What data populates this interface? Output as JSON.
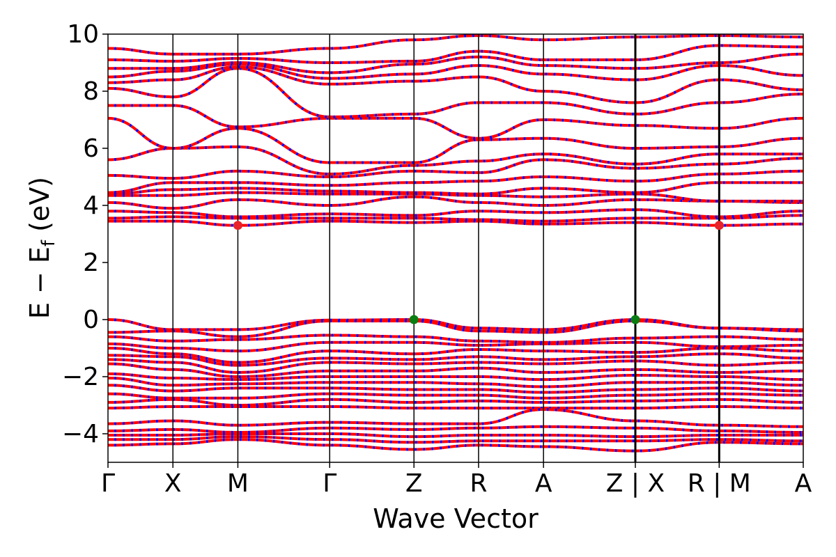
{
  "chart_data": {
    "type": "line",
    "title": "",
    "xlabel": "Wave Vector",
    "ylabel": {
      "main": "E − E",
      "sub": "f",
      "unit": " (eV)"
    },
    "ylim": [
      -5,
      10
    ],
    "yticks": [
      10,
      8,
      6,
      4,
      2,
      0,
      -2,
      -4
    ],
    "ytick_labels": [
      "10",
      "8",
      "6",
      "4",
      "2",
      "0",
      "−2",
      "−4"
    ],
    "grid": false,
    "x": [
      0.0,
      0.0934,
      0.1868,
      0.3189,
      0.4401,
      0.533,
      0.6264,
      0.7585,
      0.8791,
      1.0
    ],
    "xtick_labels": [
      "Γ",
      "X",
      "M",
      "Γ",
      "Z",
      "R",
      "A",
      "Z | X",
      "R | M",
      "A"
    ],
    "path_breaks": [
      0.7585,
      0.8791
    ],
    "line_style": {
      "color_a": "#ff0000",
      "color_b": "#0000ff",
      "note": "two overlapping dashed band sets (red and blue)"
    },
    "special_points": [
      {
        "name": "CBM",
        "x": 0.1868,
        "y": 3.3,
        "color": "#e8232a"
      },
      {
        "name": "CBM",
        "x": 0.8791,
        "y": 3.3,
        "color": "#e8232a"
      },
      {
        "name": "VBM",
        "x": 0.4401,
        "y": 0.0,
        "color": "#0a7d12"
      },
      {
        "name": "VBM",
        "x": 0.7585,
        "y": 0.0,
        "color": "#0a7d12"
      }
    ],
    "series": [
      {
        "values": [
          0.0,
          -0.35,
          -0.35,
          -0.02,
          0.0,
          -0.3,
          -0.35,
          0.0,
          -0.3,
          -0.35
        ]
      },
      {
        "values": [
          -0.45,
          -0.4,
          -0.6,
          -0.05,
          -0.05,
          -0.4,
          -0.45,
          -0.05,
          -0.3,
          -0.4
        ]
      },
      {
        "values": [
          -0.6,
          -0.75,
          -0.7,
          -0.55,
          -0.6,
          -0.75,
          -0.8,
          -0.65,
          -0.6,
          -0.7
        ]
      },
      {
        "values": [
          -0.85,
          -1.0,
          -1.1,
          -0.8,
          -0.8,
          -0.9,
          -0.85,
          -0.8,
          -0.95,
          -0.9
        ]
      },
      {
        "values": [
          -1.0,
          -1.2,
          -1.5,
          -1.1,
          -1.2,
          -1.05,
          -1.1,
          -1.15,
          -1.0,
          -1.1
        ]
      },
      {
        "values": [
          -1.25,
          -1.3,
          -1.6,
          -1.35,
          -1.4,
          -1.3,
          -1.4,
          -1.3,
          -1.2,
          -1.35
        ]
      },
      {
        "values": [
          -1.4,
          -1.5,
          -1.85,
          -1.5,
          -1.55,
          -1.5,
          -1.55,
          -1.45,
          -1.6,
          -1.5
        ]
      },
      {
        "values": [
          -1.55,
          -1.75,
          -2.0,
          -1.8,
          -1.8,
          -1.7,
          -1.85,
          -1.75,
          -1.85,
          -1.8
        ]
      },
      {
        "values": [
          -1.9,
          -2.05,
          -2.1,
          -2.0,
          -2.0,
          -2.0,
          -2.1,
          -1.95,
          -2.0,
          -2.1
        ]
      },
      {
        "values": [
          -2.05,
          -2.3,
          -2.25,
          -2.2,
          -2.2,
          -2.25,
          -2.35,
          -2.2,
          -2.2,
          -2.3
        ]
      },
      {
        "values": [
          -2.3,
          -2.5,
          -2.4,
          -2.4,
          -2.45,
          -2.45,
          -2.55,
          -2.45,
          -2.4,
          -2.5
        ]
      },
      {
        "values": [
          -2.6,
          -2.75,
          -2.75,
          -2.6,
          -2.65,
          -2.65,
          -2.75,
          -2.65,
          -2.6,
          -2.65
        ]
      },
      {
        "values": [
          -2.9,
          -2.8,
          -3.0,
          -2.8,
          -2.9,
          -2.85,
          -2.9,
          -2.85,
          -2.8,
          -2.9
        ]
      },
      {
        "values": [
          -3.1,
          -3.05,
          -3.05,
          -3.05,
          -3.1,
          -3.1,
          -3.1,
          -3.1,
          -3.05,
          -3.1
        ]
      },
      {
        "values": [
          -3.65,
          -3.55,
          -3.7,
          -3.6,
          -3.65,
          -3.65,
          -3.15,
          -3.55,
          -3.7,
          -3.75
        ]
      },
      {
        "values": [
          -3.9,
          -3.85,
          -3.95,
          -3.8,
          -3.85,
          -3.8,
          -3.75,
          -3.8,
          -3.9,
          -3.95
        ]
      },
      {
        "values": [
          -4.05,
          -4.05,
          -4.0,
          -4.0,
          -4.1,
          -4.05,
          -4.05,
          -4.1,
          -4.05,
          -4.05
        ]
      },
      {
        "values": [
          -4.2,
          -4.2,
          -4.1,
          -4.2,
          -4.3,
          -4.25,
          -4.25,
          -4.25,
          -4.2,
          -4.25
        ]
      },
      {
        "values": [
          -4.4,
          -4.35,
          -4.2,
          -4.4,
          -4.55,
          -4.4,
          -4.45,
          -4.6,
          -4.3,
          -4.35
        ]
      },
      {
        "values": [
          3.45,
          3.45,
          3.3,
          3.45,
          3.4,
          3.45,
          3.35,
          3.4,
          3.3,
          3.35
        ]
      },
      {
        "values": [
          3.55,
          3.6,
          3.55,
          3.55,
          3.55,
          3.5,
          3.45,
          3.55,
          3.55,
          3.65
        ]
      },
      {
        "values": [
          3.8,
          3.75,
          3.6,
          3.7,
          3.65,
          3.8,
          3.75,
          3.85,
          3.6,
          3.8
        ]
      },
      {
        "values": [
          4.1,
          3.9,
          4.2,
          4.0,
          4.3,
          4.1,
          4.0,
          4.2,
          4.15,
          4.1
        ]
      },
      {
        "values": [
          4.35,
          4.35,
          4.45,
          4.4,
          4.4,
          4.35,
          4.3,
          4.4,
          4.15,
          4.15
        ]
      },
      {
        "values": [
          4.4,
          4.55,
          4.6,
          4.5,
          4.45,
          4.4,
          4.6,
          4.45,
          4.8,
          4.8
        ]
      },
      {
        "values": [
          4.45,
          4.8,
          4.8,
          4.7,
          4.8,
          4.85,
          5.0,
          4.85,
          5.1,
          5.2
        ]
      },
      {
        "values": [
          5.05,
          4.95,
          5.2,
          5.0,
          5.2,
          5.15,
          5.6,
          5.3,
          5.45,
          5.65
        ]
      },
      {
        "values": [
          5.6,
          6.0,
          6.05,
          5.1,
          5.4,
          5.55,
          5.8,
          5.45,
          5.8,
          5.8
        ]
      },
      {
        "values": [
          7.05,
          6.0,
          6.7,
          5.5,
          5.5,
          6.3,
          6.35,
          6.0,
          6.05,
          6.35
        ]
      },
      {
        "values": [
          7.5,
          7.5,
          6.75,
          7.05,
          7.05,
          6.35,
          7.0,
          6.8,
          6.7,
          7.05
        ]
      },
      {
        "values": [
          8.1,
          7.8,
          8.8,
          7.1,
          7.2,
          7.6,
          7.6,
          7.2,
          7.6,
          7.9
        ]
      },
      {
        "values": [
          8.3,
          8.4,
          8.85,
          8.25,
          8.35,
          8.5,
          8.0,
          7.6,
          8.4,
          8.05
        ]
      },
      {
        "values": [
          8.5,
          8.7,
          8.95,
          8.45,
          8.6,
          8.9,
          8.6,
          8.4,
          8.9,
          8.55
        ]
      },
      {
        "values": [
          8.8,
          8.8,
          9.0,
          8.65,
          8.95,
          9.2,
          8.9,
          8.8,
          9.0,
          9.3
        ]
      },
      {
        "values": [
          9.1,
          9.05,
          9.15,
          9.0,
          9.05,
          9.4,
          9.1,
          9.1,
          9.6,
          9.55
        ]
      },
      {
        "values": [
          9.5,
          9.3,
          9.3,
          9.5,
          9.8,
          9.95,
          9.8,
          9.9,
          9.95,
          9.9
        ]
      }
    ]
  }
}
